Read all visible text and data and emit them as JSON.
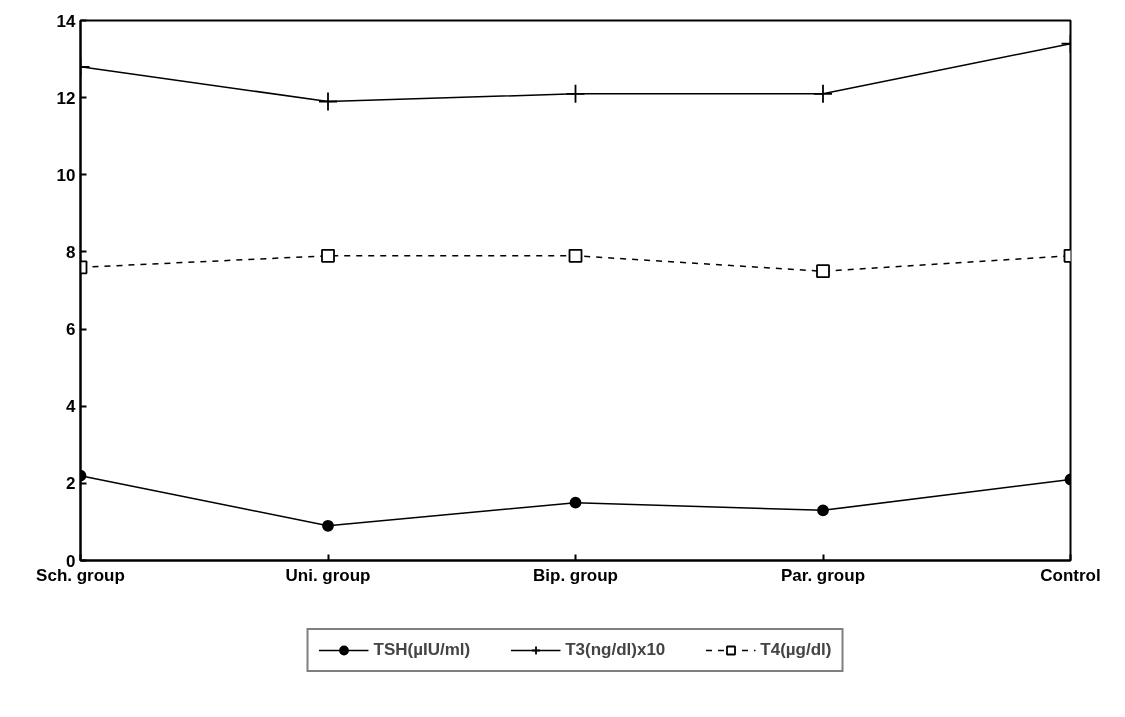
{
  "chart_data": {
    "type": "line",
    "categories": [
      "Sch. group",
      "Uni. group",
      "Bip. group",
      "Par. group",
      "Control"
    ],
    "series": [
      {
        "name": "TSH(µIU/ml)",
        "color": "#000000",
        "marker": "circle",
        "line_style": "solid",
        "values": [
          2.2,
          0.9,
          1.5,
          1.3,
          2.1
        ]
      },
      {
        "name": "T3(ng/dl)x10",
        "color": "#000000",
        "marker": "cross",
        "line_style": "solid",
        "values": [
          12.8,
          11.9,
          12.1,
          12.1,
          13.4
        ]
      },
      {
        "name": "T4(µg/dl)",
        "color": "#000000",
        "marker": "square",
        "line_style": "dashed",
        "values": [
          7.6,
          7.9,
          7.9,
          7.5,
          7.9
        ]
      }
    ],
    "ylim": [
      0,
      14
    ],
    "yticks": [
      0,
      2,
      4,
      6,
      8,
      10,
      12,
      14
    ],
    "grid": false,
    "legend": "bottom"
  }
}
